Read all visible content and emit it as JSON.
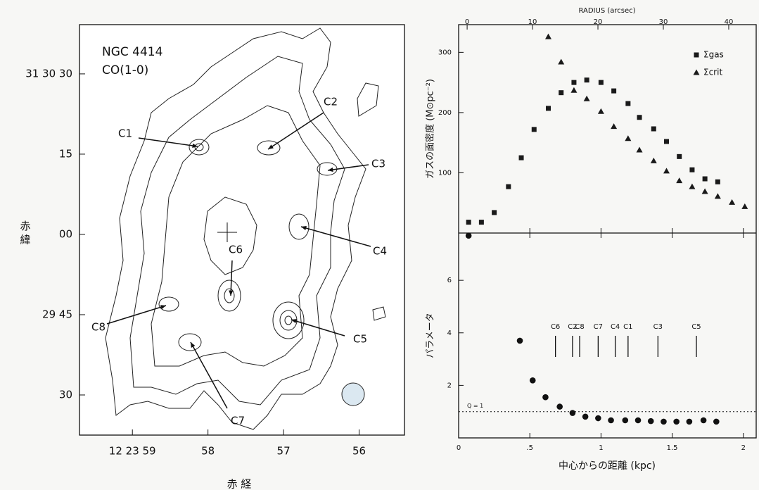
{
  "chart_data": [
    {
      "type": "contour",
      "title": "NGC 4414",
      "subtitle": "CO(1-0)",
      "xlabel": "赤 経",
      "ylabel": "赤 緯",
      "xlim": [
        59.7,
        55.4
      ],
      "xticks": [
        {
          "value": 59,
          "label": "12 23 59"
        },
        58,
        57,
        56
      ],
      "ylim": [
        22.5,
        99.2
      ],
      "yticks": [
        {
          "value": 90,
          "label": "31 30 30"
        },
        {
          "value": 75,
          "label": "15"
        },
        {
          "value": 60,
          "label": "00"
        },
        {
          "value": 45,
          "label": "29 45"
        },
        30
      ],
      "annotations": [
        "C1",
        "C2",
        "C3",
        "C4",
        "C5",
        "C6",
        "C7",
        "C8"
      ]
    },
    {
      "type": "scatter",
      "x2label": "RADIUS (arcsec)",
      "ylabel": "ガスの面密度 (M⊙pc⁻²)",
      "xlim": [
        0,
        2.09
      ],
      "x2lim": [
        -1.3,
        44.2
      ],
      "x2ticks": [
        0,
        10,
        20,
        30,
        40
      ],
      "ylim": [
        0,
        346
      ],
      "yticks": [
        100,
        200,
        300
      ],
      "legend": "upper right",
      "series": [
        {
          "name": "Σgas",
          "marker": "square",
          "color": "#1a1a1a",
          "x": [
            0.07,
            0.16,
            0.25,
            0.35,
            0.44,
            0.53,
            0.63,
            0.72,
            0.81,
            0.9,
            1.0,
            1.09,
            1.19,
            1.27,
            1.37,
            1.46,
            1.55,
            1.64,
            1.73,
            1.82
          ],
          "values": [
            18,
            18,
            34,
            77,
            125,
            172,
            207,
            233,
            250,
            254,
            250,
            236,
            215,
            192,
            173,
            152,
            127,
            105,
            90,
            85
          ]
        },
        {
          "name": "Σcrit",
          "marker": "triangle",
          "color": "#1a1a1a",
          "x": [
            0.63,
            0.72,
            0.81,
            0.9,
            1.0,
            1.09,
            1.19,
            1.27,
            1.37,
            1.46,
            1.55,
            1.64,
            1.73,
            1.82,
            1.92,
            2.01
          ],
          "values": [
            326,
            284,
            237,
            223,
            202,
            177,
            157,
            138,
            120,
            103,
            87,
            77,
            69,
            61,
            51,
            44
          ]
        }
      ]
    },
    {
      "type": "scatter",
      "xlabel": "中心からの距離 (kpc)",
      "ylabel": "パラメータ",
      "xlim": [
        0,
        2.09
      ],
      "xticks": [
        0,
        {
          "value": 0.5,
          "label": ".5"
        },
        1,
        1.5,
        2
      ],
      "ylim": [
        0,
        7.8
      ],
      "yticks": [
        2,
        4,
        6
      ],
      "series": [
        {
          "marker": "circle",
          "color": "#111",
          "x": [
            0.07,
            0.43,
            0.52,
            0.61,
            0.71,
            0.8,
            0.89,
            0.98,
            1.07,
            1.17,
            1.26,
            1.35,
            1.44,
            1.53,
            1.62,
            1.72,
            1.81
          ],
          "values": [
            7.7,
            3.7,
            2.19,
            1.55,
            1.19,
            0.95,
            0.81,
            0.75,
            0.67,
            0.67,
            0.67,
            0.64,
            0.62,
            0.62,
            0.62,
            0.67,
            0.62
          ]
        }
      ],
      "reference_line": {
        "value": 1,
        "label": "Q = 1"
      },
      "markers": {
        "labels": [
          "C6",
          "C2",
          "C8",
          "C7",
          "C4",
          "C1",
          "C3",
          "C5"
        ],
        "x": [
          0.68,
          0.8,
          0.85,
          0.98,
          1.1,
          1.19,
          1.4,
          1.67
        ]
      }
    }
  ]
}
